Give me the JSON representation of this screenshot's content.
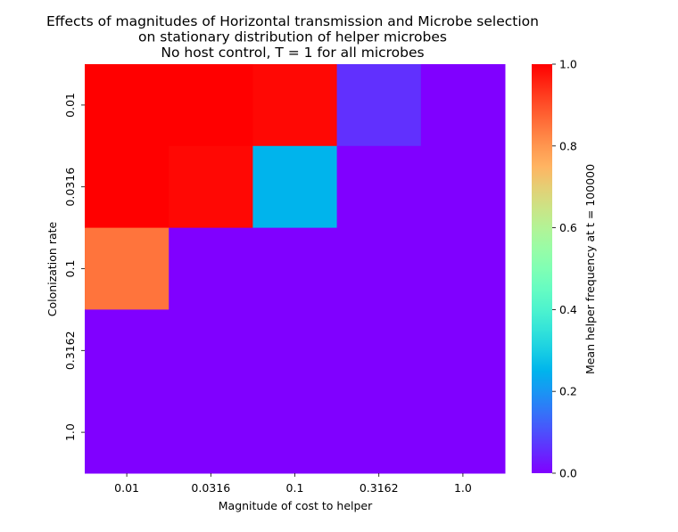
{
  "chart_data": {
    "type": "heatmap",
    "title": [
      "Effects of magnitudes of Horizontal transmission and Microbe selection",
      "on stationary distribution of helper microbes",
      "No host control, T = 1 for all microbes"
    ],
    "xlabel": "Magnitude of cost to helper",
    "ylabel": "Colonization rate",
    "x_categories": [
      "0.01",
      "0.0316",
      "0.1",
      "0.3162",
      "1.0"
    ],
    "y_categories": [
      "0.01",
      "0.0316",
      "0.1",
      "0.3162",
      "1.0"
    ],
    "values": [
      [
        1.0,
        1.0,
        0.99,
        0.06,
        0.0
      ],
      [
        1.0,
        0.99,
        0.25,
        0.0,
        0.0
      ],
      [
        0.85,
        0.0,
        0.0,
        0.0,
        0.0
      ],
      [
        0.0,
        0.0,
        0.0,
        0.0,
        0.0
      ],
      [
        0.0,
        0.0,
        0.0,
        0.0,
        0.0
      ]
    ],
    "colormap": "rainbow",
    "vmin": 0.0,
    "vmax": 1.0,
    "colorbar_label": "Mean helper frequency at t = 100000",
    "colorbar_ticks": [
      "0.0",
      "0.2",
      "0.4",
      "0.6",
      "0.8",
      "1.0"
    ]
  }
}
